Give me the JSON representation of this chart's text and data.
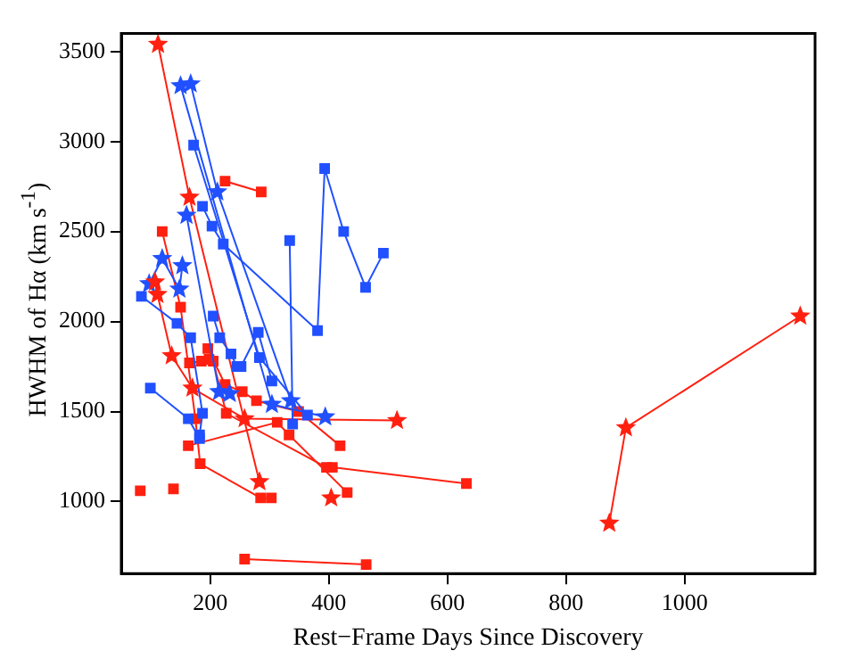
{
  "chart_data": {
    "type": "line",
    "xlabel": "Rest−Frame Days Since Discovery",
    "ylabel": "HWHM of Hα (km s$^{-1}$)",
    "xlim": [
      50,
      1220
    ],
    "xticks": [
      200,
      400,
      600,
      800,
      1000
    ],
    "ylim": [
      600,
      3600
    ],
    "yticks": [
      1000,
      1500,
      2000,
      2500,
      3000,
      3500
    ],
    "legend": false,
    "series": [
      {
        "color": "#2050ff",
        "marker": "star",
        "x": [
          150,
          304,
          394
        ],
        "values": [
          3310,
          1540,
          1470
        ]
      },
      {
        "color": "#2050ff",
        "marker": "star",
        "x": [
          167,
          212,
          336
        ],
        "values": [
          3320,
          2720,
          1560
        ]
      },
      {
        "color": "#2050ff",
        "marker": "star",
        "x": [
          160,
          215,
          233
        ],
        "values": [
          2590,
          1610,
          1600
        ]
      },
      {
        "color": "#2050ff",
        "marker": "star",
        "x": [
          97,
          119,
          148,
          153
        ],
        "values": [
          2210,
          2350,
          2180,
          2310
        ]
      },
      {
        "color": "#2050ff",
        "marker": "square",
        "x": [
          172,
          283,
          364
        ],
        "values": [
          2980,
          1800,
          1480
        ]
      },
      {
        "color": "#2050ff",
        "marker": "square",
        "x": [
          187,
          203,
          222,
          381,
          393,
          425,
          462,
          492
        ],
        "values": [
          2640,
          2530,
          2430,
          1950,
          2850,
          2500,
          2190,
          2380
        ]
      },
      {
        "color": "#2050ff",
        "marker": "square",
        "x": [
          334,
          339
        ],
        "values": [
          2450,
          1430
        ]
      },
      {
        "color": "#2050ff",
        "marker": "square",
        "x": [
          84,
          144,
          167,
          187,
          182
        ],
        "values": [
          2140,
          1990,
          1910,
          1490,
          1370
        ]
      },
      {
        "color": "#2050ff",
        "marker": "square",
        "x": [
          205,
          216,
          235,
          245,
          252,
          281,
          304
        ],
        "values": [
          2030,
          1910,
          1820,
          1750,
          1750,
          1940,
          1670
        ]
      },
      {
        "color": "#2050ff",
        "marker": "square",
        "x": [
          99,
          163,
          182
        ],
        "values": [
          1630,
          1460,
          1350
        ]
      },
      {
        "color": "#ff2010",
        "marker": "star",
        "x": [
          112,
          165,
          283
        ],
        "values": [
          3540,
          2690,
          1110
        ]
      },
      {
        "color": "#ff2010",
        "marker": "square",
        "x": [
          225,
          286
        ],
        "values": [
          2780,
          2720
        ]
      },
      {
        "color": "#ff2010",
        "marker": "square",
        "x": [
          119,
          150,
          175,
          183,
          285,
          303
        ],
        "values": [
          2500,
          2080,
          1460,
          1210,
          1020,
          1020
        ]
      },
      {
        "color": "#ff2010",
        "marker": "star",
        "x": [
          107,
          111,
          135,
          170,
          258,
          515
        ],
        "values": [
          2220,
          2150,
          1810,
          1630,
          1460,
          1450
        ]
      },
      {
        "color": "#ff2010",
        "marker": "square",
        "x": [
          165,
          185,
          198,
          205,
          227,
          396,
          406,
          632
        ],
        "values": [
          1770,
          1780,
          1790,
          1780,
          1490,
          1190,
          1190,
          1100
        ]
      },
      {
        "color": "#ff2010",
        "marker": "star",
        "x": [
          873,
          901,
          1195
        ],
        "values": [
          880,
          1410,
          2030
        ]
      },
      {
        "color": "#ff2010",
        "marker": "square",
        "x": [
          196,
          225,
          254,
          278,
          349,
          419
        ],
        "values": [
          1850,
          1650,
          1610,
          1560,
          1500,
          1310
        ]
      },
      {
        "color": "#ff2010",
        "marker": "square",
        "x": [
          163,
          313,
          333,
          431
        ],
        "values": [
          1310,
          1440,
          1370,
          1050
        ]
      },
      {
        "color": "#ff2010",
        "marker": "square",
        "x": [
          258,
          463
        ],
        "values": [
          680,
          650
        ]
      },
      {
        "color": "#ff2010",
        "marker": "square",
        "type": "scatter",
        "x": [
          82,
          138
        ],
        "values": [
          1060,
          1070
        ]
      },
      {
        "color": "#ff2010",
        "marker": "star",
        "type": "scatter",
        "x": [
          404
        ],
        "values": [
          1020
        ]
      }
    ]
  }
}
